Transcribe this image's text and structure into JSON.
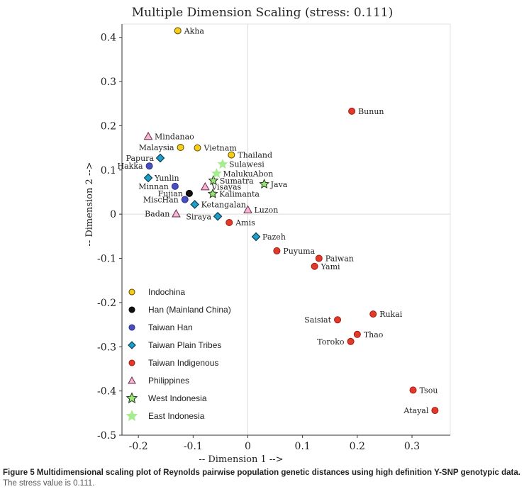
{
  "chart_data": {
    "type": "scatter",
    "title": "Multiple Dimension Scaling (stress: 0.111)",
    "xlabel": "-- Dimension 1 -->",
    "ylabel": "-- Dimension 2 -->",
    "xlim": [
      -0.23,
      0.37
    ],
    "ylim": [
      -0.5,
      0.43
    ],
    "x_ticks": [
      -0.2,
      -0.1,
      0,
      0.1,
      0.2,
      0.3
    ],
    "x_tick_labels": [
      "-0.2",
      "-0.1",
      "0",
      "0.1",
      "0.2",
      "0.3"
    ],
    "y_ticks": [
      0.4,
      0.3,
      0.2,
      0.1,
      0,
      -0.1,
      -0.2,
      -0.3,
      -0.4,
      -0.5
    ],
    "y_tick_labels": [
      "0.4",
      "0.3",
      "0.2",
      "0.1",
      "0",
      "-0.1",
      "-0.2",
      "-0.3",
      "-0.4",
      "-0.5"
    ],
    "groups": [
      {
        "key": "indochina",
        "name": "Indochina",
        "marker": "circle",
        "fill": "#f5cc1a",
        "stroke": "#5a4a00"
      },
      {
        "key": "han",
        "name": "Han (Mainland China)",
        "marker": "circle",
        "fill": "#111111",
        "stroke": "#000000"
      },
      {
        "key": "taiwan_han",
        "name": "Taiwan Han",
        "marker": "circle",
        "fill": "#4a4fbf",
        "stroke": "#2a2f8a"
      },
      {
        "key": "plain",
        "name": "Taiwan Plain Tribes",
        "marker": "diamond",
        "fill": "#1e9fc9",
        "stroke": "#0b3d55"
      },
      {
        "key": "indigenous",
        "name": "Taiwan Indigenous",
        "marker": "circle",
        "fill": "#e23a2a",
        "stroke": "#a01a10"
      },
      {
        "key": "philippines",
        "name": "Philippines",
        "marker": "triangle",
        "fill": "#f4b6d2",
        "stroke": "#6a2a4a"
      },
      {
        "key": "west_indonesia",
        "name": "West Indonesia",
        "marker": "star",
        "fill": "#9be27c",
        "stroke": "#1e3a12"
      },
      {
        "key": "east_indonesia",
        "name": "East Indonesia",
        "marker": "star",
        "fill": "#a7ec8f",
        "stroke": "#a7ec8f"
      }
    ],
    "points": [
      {
        "label": "Akha",
        "group": "indochina",
        "x": -0.128,
        "y": 0.415,
        "label_side": "right"
      },
      {
        "label": "Malaysia",
        "group": "indochina",
        "x": -0.123,
        "y": 0.151,
        "label_side": "left"
      },
      {
        "label": "Vietnam",
        "group": "indochina",
        "x": -0.092,
        "y": 0.15,
        "label_side": "right"
      },
      {
        "label": "Thailand",
        "group": "indochina",
        "x": -0.03,
        "y": 0.134,
        "label_side": "right"
      },
      {
        "label": "Fujian",
        "group": "han",
        "x": -0.107,
        "y": 0.047,
        "label_side": "left"
      },
      {
        "label": "Hakka",
        "group": "taiwan_han",
        "x": -0.18,
        "y": 0.109,
        "label_side": "left"
      },
      {
        "label": "Minnan",
        "group": "taiwan_han",
        "x": -0.133,
        "y": 0.063,
        "label_side": "left"
      },
      {
        "label": "MiscHan",
        "group": "taiwan_han",
        "x": -0.115,
        "y": 0.033,
        "label_side": "left"
      },
      {
        "label": "Papura",
        "group": "plain",
        "x": -0.16,
        "y": 0.127,
        "label_side": "left"
      },
      {
        "label": "Yunlin",
        "group": "plain",
        "x": -0.182,
        "y": 0.082,
        "label_side": "right"
      },
      {
        "label": "Ketangalan",
        "group": "plain",
        "x": -0.097,
        "y": 0.022,
        "label_side": "right"
      },
      {
        "label": "Siraya",
        "group": "plain",
        "x": -0.055,
        "y": -0.005,
        "label_side": "left"
      },
      {
        "label": "Pazeh",
        "group": "plain",
        "x": 0.015,
        "y": -0.051,
        "label_side": "right"
      },
      {
        "label": "Bunun",
        "group": "indigenous",
        "x": 0.19,
        "y": 0.233,
        "label_side": "right"
      },
      {
        "label": "Amis",
        "group": "indigenous",
        "x": -0.034,
        "y": -0.019,
        "label_side": "right"
      },
      {
        "label": "Puyuma",
        "group": "indigenous",
        "x": 0.053,
        "y": -0.083,
        "label_side": "right"
      },
      {
        "label": "Paiwan",
        "group": "indigenous",
        "x": 0.13,
        "y": -0.1,
        "label_side": "right"
      },
      {
        "label": "Yami",
        "group": "indigenous",
        "x": 0.122,
        "y": -0.118,
        "label_side": "right"
      },
      {
        "label": "Rukai",
        "group": "indigenous",
        "x": 0.229,
        "y": -0.226,
        "label_side": "right"
      },
      {
        "label": "Saisiat",
        "group": "indigenous",
        "x": 0.164,
        "y": -0.239,
        "label_side": "left"
      },
      {
        "label": "Thao",
        "group": "indigenous",
        "x": 0.2,
        "y": -0.272,
        "label_side": "right"
      },
      {
        "label": "Toroko",
        "group": "indigenous",
        "x": 0.188,
        "y": -0.288,
        "label_side": "left"
      },
      {
        "label": "Tsou",
        "group": "indigenous",
        "x": 0.302,
        "y": -0.398,
        "label_side": "right"
      },
      {
        "label": "Atayal",
        "group": "indigenous",
        "x": 0.342,
        "y": -0.444,
        "label_side": "left"
      },
      {
        "label": "Mindanao",
        "group": "philippines",
        "x": -0.182,
        "y": 0.176,
        "label_side": "right"
      },
      {
        "label": "Visayas",
        "group": "philippines",
        "x": -0.078,
        "y": 0.062,
        "label_side": "right"
      },
      {
        "label": "Luzon",
        "group": "philippines",
        "x": 0.0,
        "y": 0.01,
        "label_side": "right"
      },
      {
        "label": "Badan",
        "group": "philippines",
        "x": -0.131,
        "y": 0.001,
        "label_side": "left"
      },
      {
        "label": "Sumatra",
        "group": "west_indonesia",
        "x": -0.063,
        "y": 0.076,
        "label_side": "right"
      },
      {
        "label": "Kalimanta",
        "group": "west_indonesia",
        "x": -0.064,
        "y": 0.046,
        "label_side": "right"
      },
      {
        "label": "Java",
        "group": "west_indonesia",
        "x": 0.03,
        "y": 0.068,
        "label_side": "right"
      },
      {
        "label": "Sulawesi",
        "group": "east_indonesia",
        "x": -0.046,
        "y": 0.113,
        "label_side": "right"
      },
      {
        "label": "MalukuAbon",
        "group": "east_indonesia",
        "x": -0.057,
        "y": 0.092,
        "label_side": "right"
      }
    ]
  },
  "caption": {
    "title": "Figure 5 Multidimensional scaling plot of Reynolds pairwise population genetic distances using high definition Y-SNP genotypic data.",
    "subtitle": "The stress value is 0.111."
  }
}
